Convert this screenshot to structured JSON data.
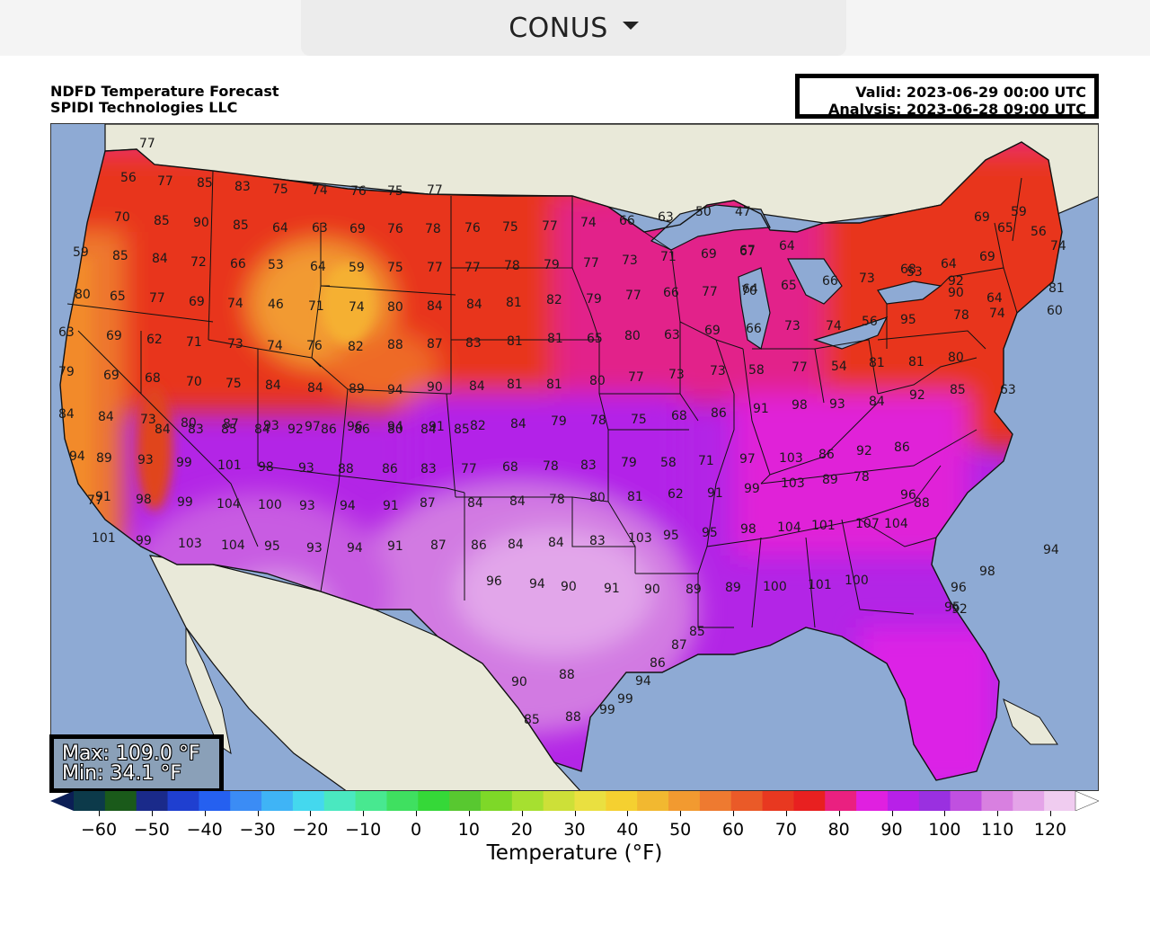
{
  "region_selector": {
    "label": "CONUS",
    "icon": "caret-down-icon"
  },
  "title": {
    "line1": "NDFD Temperature Forecast",
    "line2": "SPIDI Technologies LLC"
  },
  "validity": {
    "valid": "Valid: 2023-06-29 00:00 UTC",
    "analysis": "Analysis: 2023-06-28 09:00 UTC"
  },
  "stats": {
    "max": "Max: 109.0 °F",
    "min": "Min: 34.1 °F"
  },
  "colorbar": {
    "label": "Temperature (°F)",
    "tick_labels": [
      "−60",
      "−50",
      "−40",
      "−30",
      "−20",
      "−10",
      "0",
      "10",
      "20",
      "30",
      "40",
      "50",
      "60",
      "70",
      "80",
      "90",
      "100",
      "110",
      "120"
    ],
    "colors": [
      "#0b1e55",
      "#0c3a4a",
      "#1a5a1a",
      "#1a2a8a",
      "#1f3fd0",
      "#2560f0",
      "#3b8cf5",
      "#3fb4f6",
      "#44d8ee",
      "#4ae8c0",
      "#48e890",
      "#3fe060",
      "#35d838",
      "#58c830",
      "#7ed828",
      "#a6e030",
      "#cde038",
      "#eae040",
      "#f5d030",
      "#f2b830",
      "#f29a30",
      "#ee7a30",
      "#ea5a28",
      "#e83820",
      "#e82020",
      "#ea2080",
      "#e020e0",
      "#b820e8",
      "#9a30e0",
      "#c050e0",
      "#d880e0",
      "#e4a4e8",
      "#f0ccf0",
      "#ffffff"
    ]
  },
  "colors": {
    "ocean": "#8eaad4",
    "land_outside": "#e9e9d9"
  },
  "map_points": [
    {
      "v": "77"
    },
    {
      "v": "56"
    },
    {
      "v": "77"
    },
    {
      "v": "85"
    },
    {
      "v": "83"
    },
    {
      "v": "75"
    },
    {
      "v": "74"
    },
    {
      "v": "76"
    },
    {
      "v": "75"
    },
    {
      "v": "77"
    },
    {
      "v": "70"
    },
    {
      "v": "85"
    },
    {
      "v": "90"
    },
    {
      "v": "85"
    },
    {
      "v": "64"
    },
    {
      "v": "63"
    },
    {
      "v": "69"
    },
    {
      "v": "76"
    },
    {
      "v": "78"
    },
    {
      "v": "76"
    },
    {
      "v": "75"
    },
    {
      "v": "77"
    },
    {
      "v": "74"
    },
    {
      "v": "66"
    },
    {
      "v": "63"
    },
    {
      "v": "50"
    },
    {
      "v": "47"
    },
    {
      "v": "67"
    },
    {
      "v": "69"
    },
    {
      "v": "59"
    },
    {
      "v": "59"
    },
    {
      "v": "85"
    },
    {
      "v": "84"
    },
    {
      "v": "72"
    },
    {
      "v": "66"
    },
    {
      "v": "53"
    },
    {
      "v": "64"
    },
    {
      "v": "59"
    },
    {
      "v": "75"
    },
    {
      "v": "77"
    },
    {
      "v": "77"
    },
    {
      "v": "78"
    },
    {
      "v": "79"
    },
    {
      "v": "77"
    },
    {
      "v": "73"
    },
    {
      "v": "71"
    },
    {
      "v": "69"
    },
    {
      "v": "67"
    },
    {
      "v": "64"
    },
    {
      "v": "68"
    },
    {
      "v": "64"
    },
    {
      "v": "69"
    },
    {
      "v": "74"
    },
    {
      "v": "65"
    },
    {
      "v": "56"
    },
    {
      "v": "92"
    },
    {
      "v": "80"
    },
    {
      "v": "65"
    },
    {
      "v": "77"
    },
    {
      "v": "69"
    },
    {
      "v": "74"
    },
    {
      "v": "46"
    },
    {
      "v": "71"
    },
    {
      "v": "74"
    },
    {
      "v": "80"
    },
    {
      "v": "84"
    },
    {
      "v": "84"
    },
    {
      "v": "81"
    },
    {
      "v": "82"
    },
    {
      "v": "79"
    },
    {
      "v": "77"
    },
    {
      "v": "66"
    },
    {
      "v": "77"
    },
    {
      "v": "64"
    },
    {
      "v": "65"
    },
    {
      "v": "66"
    },
    {
      "v": "73"
    },
    {
      "v": "70"
    },
    {
      "v": "53"
    },
    {
      "v": "90"
    },
    {
      "v": "64"
    },
    {
      "v": "81"
    },
    {
      "v": "63"
    },
    {
      "v": "69"
    },
    {
      "v": "62"
    },
    {
      "v": "71"
    },
    {
      "v": "73"
    },
    {
      "v": "74"
    },
    {
      "v": "76"
    },
    {
      "v": "82"
    },
    {
      "v": "88"
    },
    {
      "v": "87"
    },
    {
      "v": "83"
    },
    {
      "v": "81"
    },
    {
      "v": "81"
    },
    {
      "v": "65"
    },
    {
      "v": "80"
    },
    {
      "v": "63"
    },
    {
      "v": "69"
    },
    {
      "v": "66"
    },
    {
      "v": "73"
    },
    {
      "v": "74"
    },
    {
      "v": "56"
    },
    {
      "v": "95"
    },
    {
      "v": "78"
    },
    {
      "v": "74"
    },
    {
      "v": "60"
    },
    {
      "v": "79"
    },
    {
      "v": "69"
    },
    {
      "v": "68"
    },
    {
      "v": "70"
    },
    {
      "v": "75"
    },
    {
      "v": "84"
    },
    {
      "v": "84"
    },
    {
      "v": "89"
    },
    {
      "v": "94"
    },
    {
      "v": "90"
    },
    {
      "v": "84"
    },
    {
      "v": "81"
    },
    {
      "v": "81"
    },
    {
      "v": "80"
    },
    {
      "v": "77"
    },
    {
      "v": "73"
    },
    {
      "v": "73"
    },
    {
      "v": "58"
    },
    {
      "v": "77"
    },
    {
      "v": "54"
    },
    {
      "v": "81"
    },
    {
      "v": "81"
    },
    {
      "v": "80"
    },
    {
      "v": "84"
    },
    {
      "v": "84"
    },
    {
      "v": "73"
    },
    {
      "v": "80"
    },
    {
      "v": "87"
    },
    {
      "v": "93"
    },
    {
      "v": "97"
    },
    {
      "v": "96"
    },
    {
      "v": "94"
    },
    {
      "v": "91"
    },
    {
      "v": "82"
    },
    {
      "v": "84"
    },
    {
      "v": "79"
    },
    {
      "v": "78"
    },
    {
      "v": "75"
    },
    {
      "v": "68"
    },
    {
      "v": "86"
    },
    {
      "v": "91"
    },
    {
      "v": "98"
    },
    {
      "v": "93"
    },
    {
      "v": "84"
    },
    {
      "v": "92"
    },
    {
      "v": "85"
    },
    {
      "v": "63"
    },
    {
      "v": "94"
    },
    {
      "v": "89"
    },
    {
      "v": "93"
    },
    {
      "v": "99"
    },
    {
      "v": "101"
    },
    {
      "v": "98"
    },
    {
      "v": "93"
    },
    {
      "v": "88"
    },
    {
      "v": "86"
    },
    {
      "v": "83"
    },
    {
      "v": "77"
    },
    {
      "v": "68"
    },
    {
      "v": "78"
    },
    {
      "v": "83"
    },
    {
      "v": "79"
    },
    {
      "v": "58"
    },
    {
      "v": "71"
    },
    {
      "v": "97"
    },
    {
      "v": "103"
    },
    {
      "v": "86"
    },
    {
      "v": "92"
    },
    {
      "v": "86"
    },
    {
      "v": "77"
    },
    {
      "v": "91"
    },
    {
      "v": "98"
    },
    {
      "v": "99"
    },
    {
      "v": "104"
    },
    {
      "v": "100"
    },
    {
      "v": "93"
    },
    {
      "v": "94"
    },
    {
      "v": "91"
    },
    {
      "v": "87"
    },
    {
      "v": "84"
    },
    {
      "v": "84"
    },
    {
      "v": "78"
    },
    {
      "v": "80"
    },
    {
      "v": "81"
    },
    {
      "v": "62"
    },
    {
      "v": "91"
    },
    {
      "v": "99"
    },
    {
      "v": "103"
    },
    {
      "v": "89"
    },
    {
      "v": "78"
    },
    {
      "v": "88"
    },
    {
      "v": "101"
    },
    {
      "v": "99"
    },
    {
      "v": "103"
    },
    {
      "v": "104"
    },
    {
      "v": "95"
    },
    {
      "v": "93"
    },
    {
      "v": "94"
    },
    {
      "v": "91"
    },
    {
      "v": "87"
    },
    {
      "v": "86"
    },
    {
      "v": "84"
    },
    {
      "v": "84"
    },
    {
      "v": "83"
    },
    {
      "v": "103"
    },
    {
      "v": "95"
    },
    {
      "v": "95"
    },
    {
      "v": "98"
    },
    {
      "v": "104"
    },
    {
      "v": "101"
    },
    {
      "v": "107"
    },
    {
      "v": "104"
    },
    {
      "v": "96"
    },
    {
      "v": "96"
    },
    {
      "v": "94"
    },
    {
      "v": "90"
    },
    {
      "v": "91"
    },
    {
      "v": "90"
    },
    {
      "v": "89"
    },
    {
      "v": "89"
    },
    {
      "v": "100"
    },
    {
      "v": "101"
    },
    {
      "v": "100"
    },
    {
      "v": "98"
    },
    {
      "v": "94"
    },
    {
      "v": "96"
    },
    {
      "v": "95"
    },
    {
      "v": "92"
    },
    {
      "v": "88"
    },
    {
      "v": "90"
    },
    {
      "v": "88"
    },
    {
      "v": "85"
    },
    {
      "v": "99"
    },
    {
      "v": "99"
    },
    {
      "v": "94"
    },
    {
      "v": "86"
    },
    {
      "v": "87"
    },
    {
      "v": "85"
    },
    {
      "v": "84"
    },
    {
      "v": "83"
    },
    {
      "v": "85"
    },
    {
      "v": "84"
    },
    {
      "v": "92"
    },
    {
      "v": "86"
    },
    {
      "v": "86"
    },
    {
      "v": "80"
    },
    {
      "v": "84"
    },
    {
      "v": "85"
    }
  ]
}
